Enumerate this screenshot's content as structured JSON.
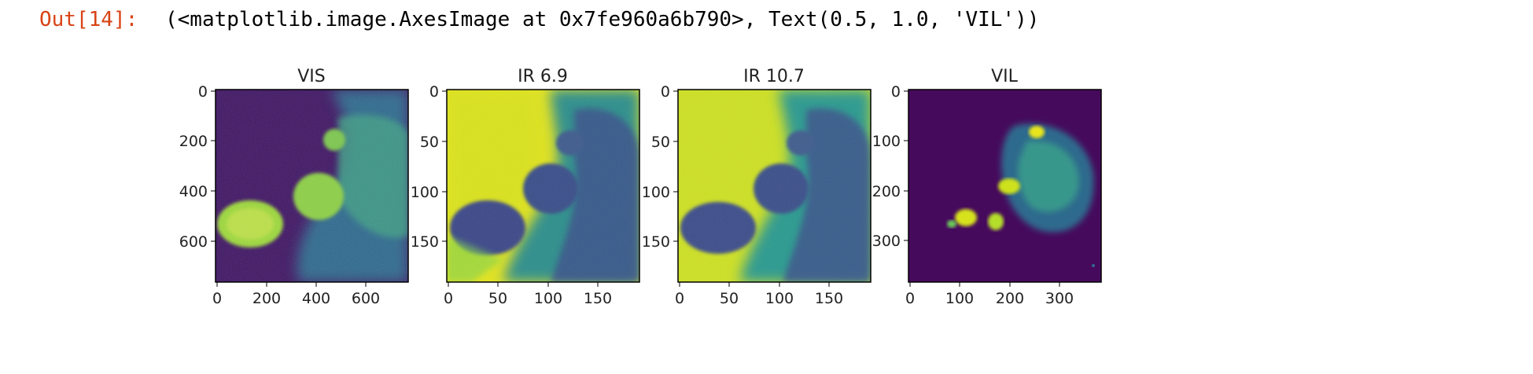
{
  "cell": {
    "prompt": "Out[14]:",
    "output": "(<matplotlib.image.AxesImage at 0x7fe960a6b790>, Text(0.5, 1.0, 'VIL'))"
  },
  "panels": [
    {
      "title": "VIS",
      "xticks": [
        "0",
        "200",
        "400",
        "600"
      ],
      "yticks": [
        "0",
        "200",
        "400",
        "600"
      ],
      "colormap": "viridis",
      "colors": {
        "low": "#440154",
        "mid": "#31688e",
        "high": "#b8de29"
      }
    },
    {
      "title": "IR 6.9",
      "xticks": [
        "0",
        "50",
        "100",
        "150"
      ],
      "yticks": [
        "0",
        "50",
        "100",
        "150"
      ],
      "colormap": "viridis",
      "colors": {
        "low": "#3b528b",
        "mid": "#2a9a8f",
        "high": "#e3e41f"
      }
    },
    {
      "title": "IR 10.7",
      "xticks": [
        "0",
        "50",
        "100",
        "150"
      ],
      "yticks": [
        "0",
        "50",
        "100",
        "150"
      ],
      "colormap": "viridis",
      "colors": {
        "low": "#3b528b",
        "mid": "#2a9a8f",
        "high": "#d8e220"
      }
    },
    {
      "title": "VIL",
      "xticks": [
        "0",
        "100",
        "200",
        "300"
      ],
      "yticks": [
        "0",
        "100",
        "200",
        "300"
      ],
      "colormap": "viridis",
      "colors": {
        "low": "#440154",
        "mid": "#2c7d8e",
        "high": "#e9e51a"
      }
    }
  ]
}
